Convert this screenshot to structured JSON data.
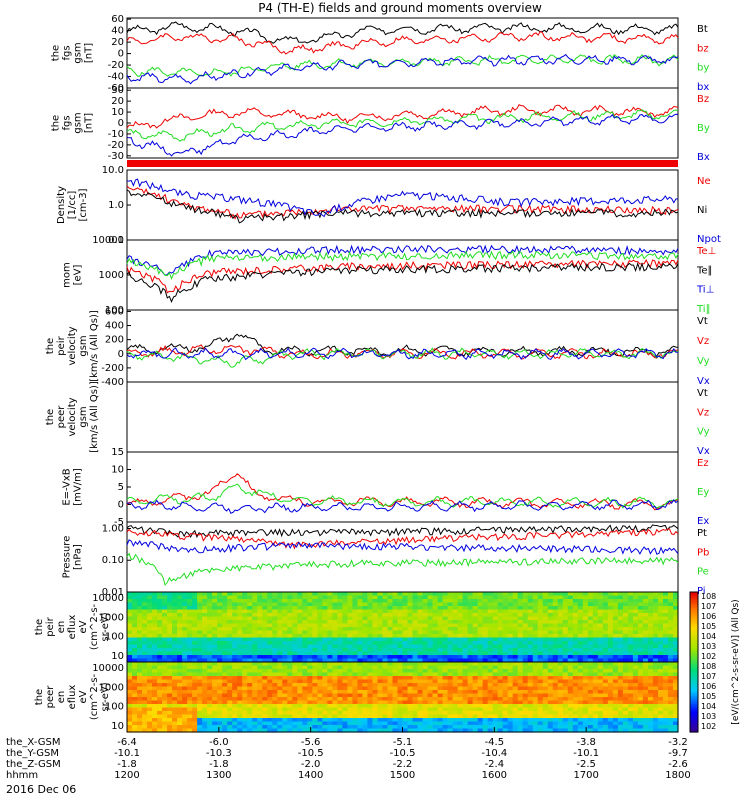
{
  "title": "P4 (TH-E) fields and ground moments overview",
  "date_label": "2016 Dec 06",
  "colors": {
    "black": "#000000",
    "red": "#ee0000",
    "green": "#22dd22",
    "blue": "#0000dd"
  },
  "chart_data": [
    {
      "type": "line",
      "ylabel": [
        "the",
        "fgs",
        "gsm",
        "[nT]"
      ],
      "yticks": [
        60,
        40,
        20,
        0,
        -20,
        -40,
        -60
      ],
      "ylim": [
        -60,
        62
      ],
      "series": [
        {
          "name": "Bt",
          "color": "black",
          "base": 40,
          "amp": 10,
          "freq": 0.9,
          "knots": [
            [
              0,
              38
            ],
            [
              0.1,
              48
            ],
            [
              0.2,
              40
            ],
            [
              0.3,
              20
            ],
            [
              0.45,
              42
            ],
            [
              0.7,
              45
            ],
            [
              1,
              42
            ]
          ]
        },
        {
          "name": "bz",
          "color": "red",
          "base": 20,
          "amp": 12,
          "freq": 1.1,
          "knots": [
            [
              0,
              20
            ],
            [
              0.1,
              30
            ],
            [
              0.2,
              25
            ],
            [
              0.3,
              5
            ],
            [
              0.45,
              20
            ],
            [
              0.7,
              30
            ],
            [
              1,
              25
            ]
          ]
        },
        {
          "name": "by",
          "color": "green",
          "base": -15,
          "amp": 8,
          "freq": 1.0,
          "knots": [
            [
              0,
              -30
            ],
            [
              0.15,
              -35
            ],
            [
              0.3,
              -20
            ],
            [
              0.5,
              -15
            ],
            [
              0.8,
              -10
            ],
            [
              1,
              -12
            ]
          ]
        },
        {
          "name": "bx",
          "color": "blue",
          "base": -25,
          "amp": 8,
          "freq": 0.8,
          "knots": [
            [
              0,
              -40
            ],
            [
              0.1,
              -45
            ],
            [
              0.3,
              -25
            ],
            [
              0.5,
              -15
            ],
            [
              0.8,
              -10
            ],
            [
              1,
              -12
            ]
          ]
        }
      ]
    },
    {
      "type": "line",
      "ylabel": [
        "the",
        "fgs",
        "gsm",
        "[nT]"
      ],
      "yticks": [
        30,
        20,
        10,
        0,
        -10,
        -20,
        -30
      ],
      "ylim": [
        -32,
        32
      ],
      "series": [
        {
          "name": "Bz",
          "color": "red",
          "knots": [
            [
              0,
              -5
            ],
            [
              0.1,
              5
            ],
            [
              0.2,
              10
            ],
            [
              0.4,
              5
            ],
            [
              0.7,
              12
            ],
            [
              1,
              10
            ]
          ]
        },
        {
          "name": "By",
          "color": "green",
          "knots": [
            [
              0,
              -10
            ],
            [
              0.1,
              -12
            ],
            [
              0.2,
              -5
            ],
            [
              0.4,
              0
            ],
            [
              0.7,
              5
            ],
            [
              1,
              8
            ]
          ]
        },
        {
          "name": "Bx",
          "color": "blue",
          "knots": [
            [
              0,
              -15
            ],
            [
              0.1,
              -28
            ],
            [
              0.2,
              -15
            ],
            [
              0.4,
              -5
            ],
            [
              0.7,
              0
            ],
            [
              1,
              5
            ]
          ]
        }
      ]
    },
    {
      "type": "line",
      "scale": "log",
      "ylabel": [
        "Density",
        "[1/cc]",
        "[cm-3]"
      ],
      "yticks": [
        "10.0",
        "1.0",
        "0.1"
      ],
      "ylim": [
        0.1,
        10
      ],
      "series": [
        {
          "name": "Ne",
          "color": "red",
          "knots": [
            [
              0,
              3
            ],
            [
              0.1,
              1
            ],
            [
              0.2,
              0.5
            ],
            [
              0.4,
              0.8
            ],
            [
              0.7,
              0.8
            ],
            [
              1,
              0.7
            ]
          ]
        },
        {
          "name": "Ni",
          "color": "black",
          "knots": [
            [
              0,
              2.5
            ],
            [
              0.1,
              0.9
            ],
            [
              0.2,
              0.4
            ],
            [
              0.4,
              0.6
            ],
            [
              0.7,
              0.6
            ],
            [
              1,
              0.6
            ]
          ]
        },
        {
          "name": "Npot",
          "color": "blue",
          "knots": [
            [
              0,
              5
            ],
            [
              0.1,
              2
            ],
            [
              0.2,
              1.5
            ],
            [
              0.35,
              0.5
            ],
            [
              0.5,
              2
            ],
            [
              0.7,
              1.2
            ],
            [
              1,
              1.5
            ]
          ]
        }
      ]
    },
    {
      "type": "line",
      "scale": "log",
      "ylabel": [
        "mom",
        "[eV]"
      ],
      "yticks": [
        "10000",
        "1000",
        "100"
      ],
      "ylim": [
        100,
        10000
      ],
      "series": [
        {
          "name": "Te⊥",
          "color": "red",
          "knots": [
            [
              0,
              1500
            ],
            [
              0.08,
              300
            ],
            [
              0.15,
              1200
            ],
            [
              0.4,
              1800
            ],
            [
              0.7,
              2000
            ],
            [
              1,
              2200
            ]
          ]
        },
        {
          "name": "Te∥",
          "color": "black",
          "knots": [
            [
              0,
              1000
            ],
            [
              0.08,
              200
            ],
            [
              0.15,
              800
            ],
            [
              0.4,
              1400
            ],
            [
              0.7,
              1600
            ],
            [
              1,
              1800
            ]
          ]
        },
        {
          "name": "Ti⊥",
          "color": "blue",
          "knots": [
            [
              0,
              3000
            ],
            [
              0.08,
              1000
            ],
            [
              0.15,
              4000
            ],
            [
              0.4,
              5500
            ],
            [
              0.7,
              5500
            ],
            [
              1,
              5000
            ]
          ]
        },
        {
          "name": "Ti∥",
          "color": "green",
          "knots": [
            [
              0,
              2500
            ],
            [
              0.08,
              900
            ],
            [
              0.15,
              3000
            ],
            [
              0.4,
              3500
            ],
            [
              0.7,
              3800
            ],
            [
              1,
              3500
            ]
          ]
        }
      ]
    },
    {
      "type": "line",
      "ylabel": [
        "the",
        "peir",
        "velocity",
        "gsm",
        "[km/s (All Qs)]"
      ],
      "yticks": [
        600,
        400,
        200,
        0,
        -200,
        -400
      ],
      "ylim": [
        -400,
        620
      ],
      "series": [
        {
          "name": "Vt",
          "color": "black",
          "knots": [
            [
              0,
              50
            ],
            [
              0.15,
              100
            ],
            [
              0.2,
              300
            ],
            [
              0.25,
              50
            ],
            [
              1,
              30
            ]
          ]
        },
        {
          "name": "Vz",
          "color": "red",
          "knots": [
            [
              0,
              0
            ],
            [
              0.2,
              80
            ],
            [
              0.3,
              0
            ],
            [
              1,
              0
            ]
          ]
        },
        {
          "name": "Vy",
          "color": "green",
          "knots": [
            [
              0,
              0
            ],
            [
              0.2,
              -120
            ],
            [
              0.3,
              0
            ],
            [
              1,
              0
            ]
          ]
        },
        {
          "name": "Vx",
          "color": "blue",
          "knots": [
            [
              0,
              0
            ],
            [
              1,
              0
            ]
          ]
        }
      ]
    },
    {
      "type": "line",
      "ylabel": [
        "the",
        "peer",
        "velocity",
        "gsm",
        "[km/s (All Qs)]"
      ],
      "yticks": [],
      "ylim": [
        0,
        1
      ],
      "series": [
        {
          "name": "Vt",
          "color": "black",
          "knots": []
        },
        {
          "name": "Vz",
          "color": "red",
          "knots": []
        },
        {
          "name": "Vy",
          "color": "green",
          "knots": []
        },
        {
          "name": "Vx",
          "color": "blue",
          "knots": []
        }
      ]
    },
    {
      "type": "line",
      "ylabel": [
        "E=-VxB",
        "[mV/m]"
      ],
      "yticks": [
        15,
        10,
        5,
        0,
        -5
      ],
      "ylim": [
        -5,
        15
      ],
      "series": [
        {
          "name": "Ez",
          "color": "red",
          "knots": [
            [
              0,
              0
            ],
            [
              0.15,
              3
            ],
            [
              0.2,
              10
            ],
            [
              0.23,
              3
            ],
            [
              0.3,
              1
            ],
            [
              1,
              0
            ]
          ]
        },
        {
          "name": "Ey",
          "color": "green",
          "knots": [
            [
              0,
              1
            ],
            [
              0.15,
              2
            ],
            [
              0.2,
              5
            ],
            [
              0.3,
              1
            ],
            [
              1,
              0.5
            ]
          ]
        },
        {
          "name": "Ex",
          "color": "blue",
          "knots": [
            [
              0,
              0
            ],
            [
              0.2,
              -1
            ],
            [
              1,
              0
            ]
          ]
        }
      ]
    },
    {
      "type": "line",
      "scale": "log",
      "ylabel": [
        "Pressure",
        "[nPa]"
      ],
      "yticks": [
        "1.00",
        "0.10",
        "0.01"
      ],
      "ylim": [
        0.01,
        1.6
      ],
      "series": [
        {
          "name": "Pt",
          "color": "black",
          "knots": [
            [
              0,
              1
            ],
            [
              0.1,
              0.7
            ],
            [
              0.5,
              0.8
            ],
            [
              1,
              1.1
            ]
          ]
        },
        {
          "name": "Pb",
          "color": "red",
          "knots": [
            [
              0,
              0.8
            ],
            [
              0.1,
              0.6
            ],
            [
              0.3,
              0.3
            ],
            [
              0.6,
              0.5
            ],
            [
              1,
              0.8
            ]
          ]
        },
        {
          "name": "Pe",
          "color": "green",
          "knots": [
            [
              0,
              0.15
            ],
            [
              0.07,
              0.02
            ],
            [
              0.15,
              0.05
            ],
            [
              0.4,
              0.08
            ],
            [
              1,
              0.1
            ]
          ]
        },
        {
          "name": "Pi",
          "color": "blue",
          "knots": [
            [
              0,
              0.4
            ],
            [
              0.1,
              0.2
            ],
            [
              0.3,
              0.3
            ],
            [
              1,
              0.2
            ]
          ]
        }
      ]
    },
    {
      "type": "heatmap",
      "ylabel": [
        "the",
        "peir",
        "en",
        "eflux",
        "eV",
        "(cm^2-s-",
        "sr-eV)"
      ],
      "yticks": [
        "10000",
        "1000",
        "100",
        "10"
      ],
      "ylim": [
        5,
        20000
      ]
    },
    {
      "type": "heatmap",
      "ylabel": [
        "the",
        "peer",
        "en",
        "eflux",
        "eV",
        "(cm^2-s-",
        "sr-eV)"
      ],
      "yticks": [
        "10000",
        "1000",
        "100",
        "10"
      ],
      "ylim": [
        5,
        20000
      ]
    }
  ],
  "colorbar": {
    "ticks": [
      "10^8",
      "10^7",
      "10^6",
      "10^5",
      "10^4",
      "10^3",
      "10^2"
    ],
    "label": "[eV/(cm^2-s-sr-eV)] (All Qs)"
  },
  "xaxis": {
    "rows": [
      {
        "label": "the_X-GSM",
        "values": [
          "-6.4",
          "-6.0",
          "-5.6",
          "-5.1",
          "-4.5",
          "-3.8",
          "-3.2"
        ]
      },
      {
        "label": "the_Y-GSM",
        "values": [
          "-10.1",
          "-10.3",
          "-10.5",
          "-10.5",
          "-10.4",
          "-10.1",
          "-9.7"
        ]
      },
      {
        "label": "the_Z-GSM",
        "values": [
          "-1.8",
          "-1.8",
          "-2.0",
          "-2.2",
          "-2.4",
          "-2.5",
          "-2.6"
        ]
      },
      {
        "label": "hhmm",
        "values": [
          "1200",
          "1300",
          "1400",
          "1500",
          "1600",
          "1700",
          "1800"
        ]
      }
    ]
  }
}
